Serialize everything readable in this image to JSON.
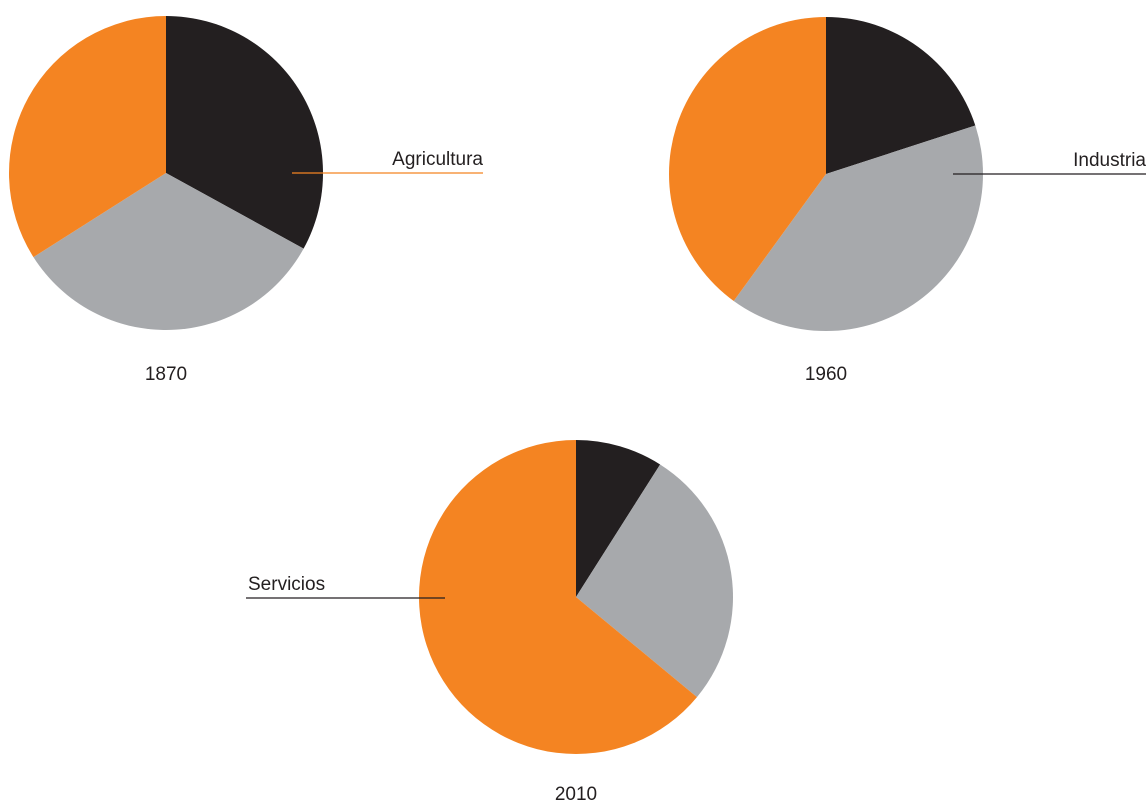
{
  "chart_data": [
    {
      "type": "pie",
      "title": "1870",
      "categories": [
        "Agricultura",
        null,
        null
      ],
      "values": [
        33,
        33,
        34
      ],
      "colors": [
        "#231f20",
        "#a7a9ac",
        "#f48422"
      ]
    },
    {
      "type": "pie",
      "title": "1960",
      "categories": [
        null,
        "Industria",
        null
      ],
      "values": [
        20,
        40,
        40
      ],
      "colors": [
        "#231f20",
        "#a7a9ac",
        "#f48422"
      ]
    },
    {
      "type": "pie",
      "title": "2010",
      "categories": [
        null,
        null,
        "Servicios"
      ],
      "values": [
        9,
        27,
        64
      ],
      "colors": [
        "#231f20",
        "#a7a9ac",
        "#f48422"
      ]
    }
  ]
}
